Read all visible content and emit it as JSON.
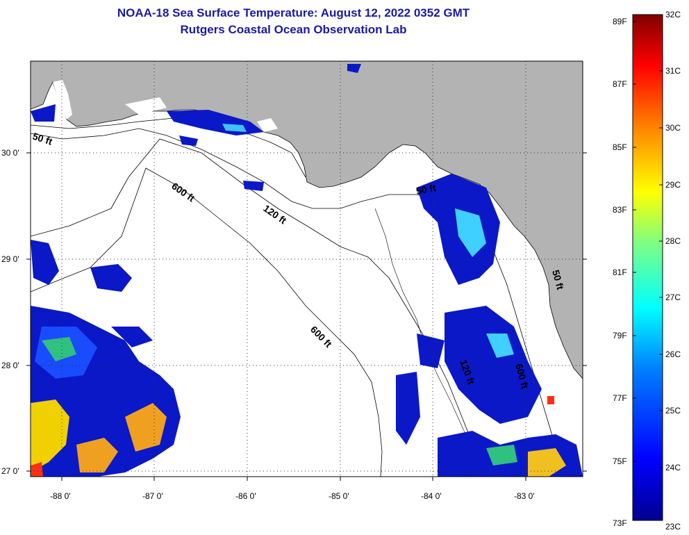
{
  "title_line1": "NOAA-18 Sea Surface Temperature:  August 12, 2022 0352 GMT",
  "title_line2": "Rutgers Coastal Ocean Observation Lab",
  "map": {
    "lon_labels": [
      "-88 0'",
      "-87 0'",
      "-86 0'",
      "-85 0'",
      "-84 0'",
      "-83 0'"
    ],
    "lat_labels": [
      "30 0'",
      "29 0'",
      "28 0'",
      "27 0'"
    ],
    "land_color": "#b3b3b3",
    "water_color": "#ffffff",
    "contours": {
      "label_50_west": "50 ft",
      "label_600_a": "600 ft",
      "label_120": "120 ft",
      "label_50_east": "50 ft",
      "label_600_b": "600 ft",
      "label_120_east": "120 ft",
      "label_600_east": "600 ft",
      "label_50_coast": "50 ft"
    }
  },
  "colorbar": {
    "fahrenheit_labels": [
      "89F",
      "87F",
      "85F",
      "83F",
      "81F",
      "79F",
      "77F",
      "75F",
      "73F"
    ],
    "celsius_labels": [
      "32C",
      "31C",
      "30C",
      "29C",
      "28C",
      "27C",
      "26C",
      "25C",
      "24C",
      "23C"
    ],
    "stops": [
      "#00008f",
      "#0000ff",
      "#0080ff",
      "#00ffff",
      "#80ff80",
      "#ffff00",
      "#ff8000",
      "#ff0000",
      "#800000"
    ]
  }
}
